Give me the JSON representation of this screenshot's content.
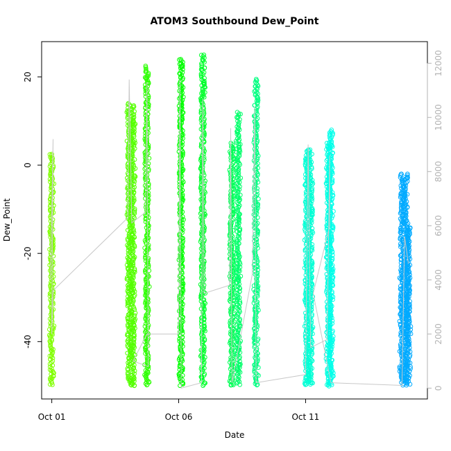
{
  "chart_data": {
    "type": "scatter",
    "title": "ATOM3 Southbound Dew_Point",
    "xlabel": "Date",
    "ylabel": "Dew_Point",
    "x_tick_labels": [
      "Oct 01",
      "Oct 06",
      "Oct 11"
    ],
    "x_ticks_days": [
      1,
      6,
      11
    ],
    "xlim_days": [
      0.6,
      15.8
    ],
    "ylim": [
      -53,
      28
    ],
    "y_ticks": [
      -40,
      -20,
      0,
      20
    ],
    "y_tick_labels": [
      "-40",
      "-20",
      "0",
      "20"
    ],
    "secondary_axis": {
      "label": "",
      "ylim": [
        -400,
        12800
      ],
      "ticks": [
        0,
        2000,
        4000,
        6000,
        8000,
        10000,
        12000
      ],
      "tick_labels": [
        "0",
        "2000",
        "4000",
        "6000",
        "8000",
        "10000",
        "12000"
      ],
      "color": "#b3b3b3"
    },
    "series": [
      {
        "x": 1.0,
        "ymin": -50,
        "ymax": 2.5,
        "color": "#80ff00"
      },
      {
        "x": 4.05,
        "ymin": -50,
        "ymax": 14,
        "color": "#55ff00"
      },
      {
        "x": 4.2,
        "ymin": -50,
        "ymax": 13.5,
        "color": "#55ff00"
      },
      {
        "x": 4.75,
        "ymin": -50,
        "ymax": 22.5,
        "color": "#2bff00"
      },
      {
        "x": 6.1,
        "ymin": -50,
        "ymax": 24,
        "color": "#00ff00"
      },
      {
        "x": 6.95,
        "ymin": -50,
        "ymax": 25,
        "color": "#00ff2b"
      },
      {
        "x": 8.1,
        "ymin": -50,
        "ymax": 5,
        "color": "#00ff55"
      },
      {
        "x": 8.35,
        "ymin": -50,
        "ymax": 12,
        "color": "#00ff6a"
      },
      {
        "x": 9.05,
        "ymin": -50,
        "ymax": 19.5,
        "color": "#00ff80"
      },
      {
        "x": 11.05,
        "ymin": -50,
        "ymax": 3.5,
        "color": "#00ffd5"
      },
      {
        "x": 11.2,
        "ymin": -50,
        "ymax": 3.5,
        "color": "#00ffd5"
      },
      {
        "x": 11.9,
        "ymin": -50,
        "ymax": 5,
        "color": "#00ffe0"
      },
      {
        "x": 12.0,
        "ymin": -50,
        "ymax": 8,
        "color": "#00ffea"
      },
      {
        "x": 14.8,
        "ymin": -50,
        "ymax": -2,
        "color": "#00aaff"
      },
      {
        "x": 14.95,
        "ymin": -50,
        "ymax": -2,
        "color": "#00aaff"
      },
      {
        "x": 15.05,
        "ymin": -50,
        "ymax": -14,
        "color": "#00aaff"
      }
    ],
    "altitude_line": {
      "color": "#c8c8c8",
      "points": [
        [
          0.95,
          4000
        ],
        [
          1.05,
          9200
        ],
        [
          1.0,
          2000
        ],
        [
          1.05,
          3600
        ],
        [
          4.0,
          6300
        ],
        [
          4.05,
          11400
        ],
        [
          4.15,
          6100
        ],
        [
          4.7,
          6500
        ],
        [
          4.75,
          11300
        ],
        [
          4.8,
          800
        ],
        [
          4.2,
          1000
        ],
        [
          4.75,
          2000
        ],
        [
          6.0,
          2000
        ],
        [
          6.05,
          11400
        ],
        [
          6.1,
          0
        ],
        [
          6.9,
          200
        ],
        [
          6.95,
          10700
        ],
        [
          7.0,
          3500
        ],
        [
          8.0,
          3800
        ],
        [
          8.05,
          9600
        ],
        [
          8.1,
          200
        ],
        [
          8.9,
          4200
        ],
        [
          9.0,
          10400
        ],
        [
          9.05,
          200
        ],
        [
          11.0,
          500
        ],
        [
          11.1,
          9000
        ],
        [
          11.2,
          1500
        ],
        [
          11.85,
          1800
        ],
        [
          11.95,
          8600
        ],
        [
          11.95,
          6000
        ],
        [
          11.3,
          3500
        ],
        [
          12.0,
          200
        ],
        [
          14.8,
          100
        ],
        [
          14.9,
          5600
        ],
        [
          15.05,
          4600
        ]
      ]
    }
  }
}
